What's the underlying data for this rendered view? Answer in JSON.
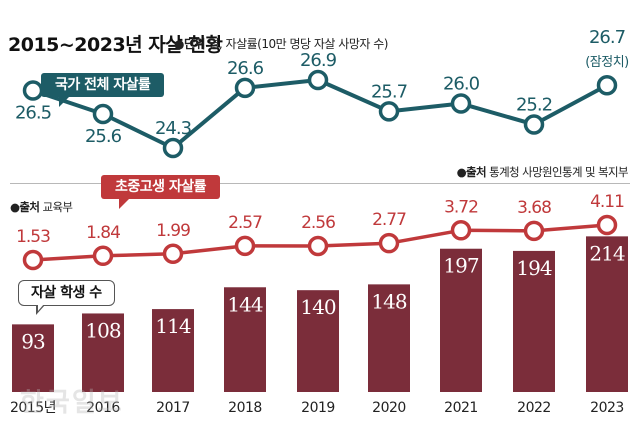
{
  "header": {
    "title": "2015~2023년 자살 현황",
    "unit_label": "●단위",
    "unit_text": "명, 자살률(10만 명당 자살 사망자 수)"
  },
  "sources": {
    "national_label": "●출처",
    "national_text": "통계청 사망원인통계 및 복지부",
    "student_label": "●출처",
    "student_text": "교육부"
  },
  "callouts": {
    "national": "국가 전체 자살률",
    "student": "초중고생 자살률",
    "count": "자살 학생 수"
  },
  "watermark": "한국일보",
  "colors": {
    "national": "#1d5c66",
    "student": "#c0393b",
    "bar": "#7b2d3a"
  },
  "chart_data": [
    {
      "type": "line",
      "name": "국가 전체 자살률",
      "x": [
        "2015",
        "2016",
        "2017",
        "2018",
        "2019",
        "2020",
        "2021",
        "2022",
        "2023"
      ],
      "values": [
        26.5,
        25.6,
        24.3,
        26.6,
        26.9,
        25.7,
        26.0,
        25.2,
        26.7
      ],
      "labels": [
        "26.5",
        "25.6",
        "24.3",
        "26.6",
        "26.9",
        "25.7",
        "26.0",
        "25.2",
        "26.7"
      ],
      "annotations": [
        {
          "x": "2023",
          "text": "(잠정치)"
        }
      ],
      "ylim": [
        24,
        27.2
      ]
    },
    {
      "type": "line",
      "name": "초중고생 자살률",
      "x": [
        "2015",
        "2016",
        "2017",
        "2018",
        "2019",
        "2020",
        "2021",
        "2022",
        "2023"
      ],
      "values": [
        1.53,
        1.84,
        1.99,
        2.57,
        2.56,
        2.77,
        3.72,
        3.68,
        4.11
      ],
      "labels": [
        "1.53",
        "1.84",
        "1.99",
        "2.57",
        "2.56",
        "2.77",
        "3.72",
        "3.68",
        "4.11"
      ],
      "ylim": [
        0,
        10
      ]
    },
    {
      "type": "bar",
      "name": "자살 학생 수",
      "categories": [
        "2015년",
        "2016",
        "2017",
        "2018",
        "2019",
        "2020",
        "2021",
        "2022",
        "2023"
      ],
      "values": [
        93,
        108,
        114,
        144,
        140,
        148,
        197,
        194,
        214
      ],
      "ylim": [
        0,
        220
      ]
    }
  ]
}
